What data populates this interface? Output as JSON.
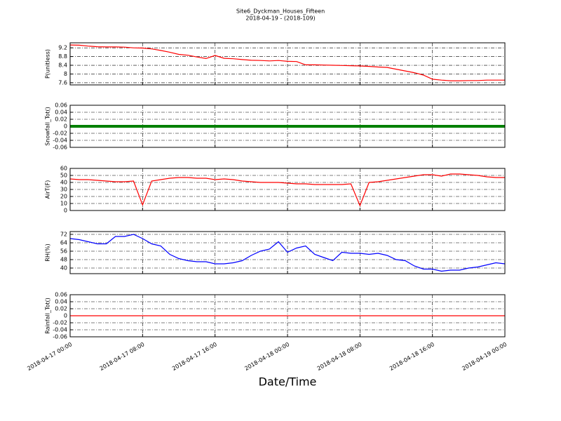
{
  "title": "Site6_Dyckman_Houses_Fifteen",
  "subtitle": "2018-04-19 - (2018-109)",
  "xlabel": "Date/Time",
  "xlim": [
    "2018-04-17 00:00",
    "2018-04-19 00:00"
  ],
  "xticks": [
    "2018-04-17 00:00",
    "2018-04-17 08:00",
    "2018-04-17 16:00",
    "2018-04-18 00:00",
    "2018-04-18 08:00",
    "2018-04-18 16:00",
    "2018-04-19 00:00"
  ],
  "x": [
    "2018-04-17 00:00",
    "2018-04-17 01:00",
    "2018-04-17 02:00",
    "2018-04-17 03:00",
    "2018-04-17 04:00",
    "2018-04-17 05:00",
    "2018-04-17 06:00",
    "2018-04-17 07:00",
    "2018-04-17 08:00",
    "2018-04-17 09:00",
    "2018-04-17 10:00",
    "2018-04-17 11:00",
    "2018-04-17 12:00",
    "2018-04-17 13:00",
    "2018-04-17 14:00",
    "2018-04-17 15:00",
    "2018-04-17 16:00",
    "2018-04-17 17:00",
    "2018-04-17 18:00",
    "2018-04-17 19:00",
    "2018-04-17 20:00",
    "2018-04-17 21:00",
    "2018-04-17 22:00",
    "2018-04-17 23:00",
    "2018-04-18 00:00",
    "2018-04-18 01:00",
    "2018-04-18 02:00",
    "2018-04-18 03:00",
    "2018-04-18 04:00",
    "2018-04-18 05:00",
    "2018-04-18 06:00",
    "2018-04-18 07:00",
    "2018-04-18 08:00",
    "2018-04-18 09:00",
    "2018-04-18 10:00",
    "2018-04-18 11:00",
    "2018-04-18 12:00",
    "2018-04-18 13:00",
    "2018-04-18 14:00",
    "2018-04-18 15:00",
    "2018-04-18 16:00",
    "2018-04-18 17:00",
    "2018-04-18 18:00",
    "2018-04-18 19:00",
    "2018-04-18 20:00",
    "2018-04-18 21:00",
    "2018-04-18 22:00",
    "2018-04-18 23:00",
    "2018-04-19 00:00"
  ],
  "chart_data": [
    {
      "type": "line",
      "ylabel": "P(unitless)",
      "ylim": [
        7.5,
        9.43
      ],
      "yticks": [
        7.6,
        8.0,
        8.4,
        8.8,
        9.2
      ],
      "grid": true,
      "series": [
        {
          "color": "#ff0000",
          "values": [
            9.33,
            9.32,
            9.28,
            9.25,
            9.24,
            9.24,
            9.23,
            9.2,
            9.19,
            9.15,
            9.08,
            9.0,
            8.9,
            8.86,
            8.78,
            8.71,
            8.85,
            8.72,
            8.7,
            8.66,
            8.63,
            8.62,
            8.6,
            8.62,
            8.58,
            8.57,
            8.42,
            8.42,
            8.41,
            8.4,
            8.39,
            8.38,
            8.37,
            8.35,
            8.32,
            8.3,
            8.22,
            8.14,
            8.06,
            7.95,
            7.76,
            7.72,
            7.69,
            7.69,
            7.7,
            7.7,
            7.72,
            7.72,
            7.72
          ]
        }
      ]
    },
    {
      "type": "line",
      "ylabel": "Snowfall_Tot()",
      "ylim": [
        -0.06,
        0.06
      ],
      "yticks": [
        -0.06,
        -0.04,
        -0.02,
        0.0,
        0.02,
        0.04,
        0.06
      ],
      "grid": true,
      "series": [
        {
          "color": "#008000",
          "values": [
            0,
            0,
            0,
            0,
            0,
            0,
            0,
            0,
            0,
            0,
            0,
            0,
            0,
            0,
            0,
            0,
            0,
            0,
            0,
            0,
            0,
            0,
            0,
            0,
            0,
            0,
            0,
            0,
            0,
            0,
            0,
            0,
            0,
            0,
            0,
            0,
            0,
            0,
            0,
            0,
            0,
            0,
            0,
            0,
            0,
            0,
            0,
            0,
            0
          ]
        }
      ]
    },
    {
      "type": "line",
      "ylabel": "AirT(F)",
      "ylim": [
        0,
        60
      ],
      "yticks": [
        0,
        10,
        20,
        30,
        40,
        50,
        60
      ],
      "grid": true,
      "series": [
        {
          "color": "#ff0000",
          "values": [
            45,
            44,
            44,
            43,
            42,
            41,
            41,
            42,
            8,
            42,
            44,
            46,
            47,
            47,
            46,
            46,
            44,
            45,
            44,
            42,
            41,
            40,
            40,
            40,
            39,
            38,
            38,
            37,
            37,
            37,
            37,
            38,
            7,
            40,
            41,
            43,
            45,
            47,
            49,
            51,
            51,
            49,
            52,
            52,
            51,
            50,
            48,
            47,
            47
          ]
        }
      ]
    },
    {
      "type": "line",
      "ylabel": "RH(%)",
      "ylim": [
        34.67,
        74.67
      ],
      "yticks": [
        40,
        48,
        56,
        64,
        72
      ],
      "grid": true,
      "series": [
        {
          "color": "#0000ff",
          "values": [
            68,
            67,
            65,
            63,
            63,
            70,
            70,
            72,
            68,
            63,
            61,
            53,
            49,
            47,
            46,
            46,
            44,
            44,
            45,
            47,
            52,
            56,
            58,
            65,
            55,
            59,
            61,
            53,
            50,
            47,
            55,
            54,
            54,
            53,
            54,
            52,
            48,
            47,
            42,
            39,
            39,
            37,
            38,
            38,
            40,
            41,
            43,
            45,
            44
          ]
        }
      ]
    },
    {
      "type": "line",
      "ylabel": "Rainfall_Tot()",
      "ylim": [
        -0.06,
        0.06
      ],
      "yticks": [
        -0.06,
        -0.04,
        -0.02,
        0.0,
        0.02,
        0.04,
        0.06
      ],
      "grid": true,
      "series": [
        {
          "color": "#ff0000",
          "values": [
            0,
            0,
            0,
            0,
            0,
            0,
            0,
            0,
            0,
            0,
            0,
            0,
            0,
            0,
            0,
            0,
            0,
            0,
            0,
            0,
            0,
            0,
            0,
            0,
            0,
            0,
            0,
            0,
            0,
            0,
            0,
            0,
            0,
            0,
            0,
            0,
            0,
            0,
            0,
            0,
            0,
            0,
            0,
            0,
            0,
            0,
            0,
            0,
            0
          ]
        }
      ]
    }
  ]
}
